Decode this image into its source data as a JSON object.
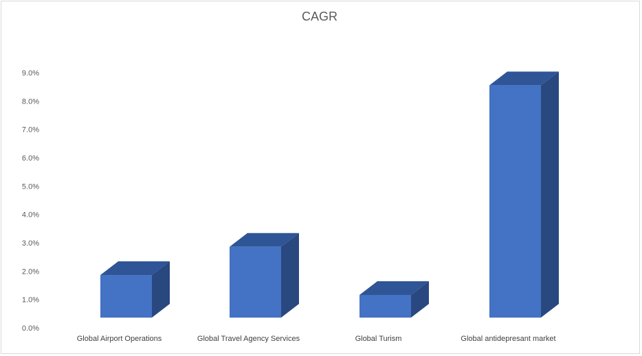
{
  "chart_data": {
    "type": "bar",
    "style": "3d-column",
    "title": "CAGR",
    "categories": [
      "Global Airport Operations",
      "Global Travel Agency Services",
      "Global Turism",
      "Global antidepresant market"
    ],
    "values": [
      1.5,
      2.5,
      0.8,
      8.2
    ],
    "value_unit": "%",
    "ylim": [
      0,
      9
    ],
    "yticks": [
      "0.0%",
      "1.0%",
      "2.0%",
      "3.0%",
      "4.0%",
      "5.0%",
      "6.0%",
      "7.0%",
      "8.0%",
      "9.0%"
    ],
    "grid": false,
    "legend": "none",
    "colors": {
      "front": "#4472c4",
      "top": "#2f5597",
      "side": "#2a4880"
    }
  }
}
